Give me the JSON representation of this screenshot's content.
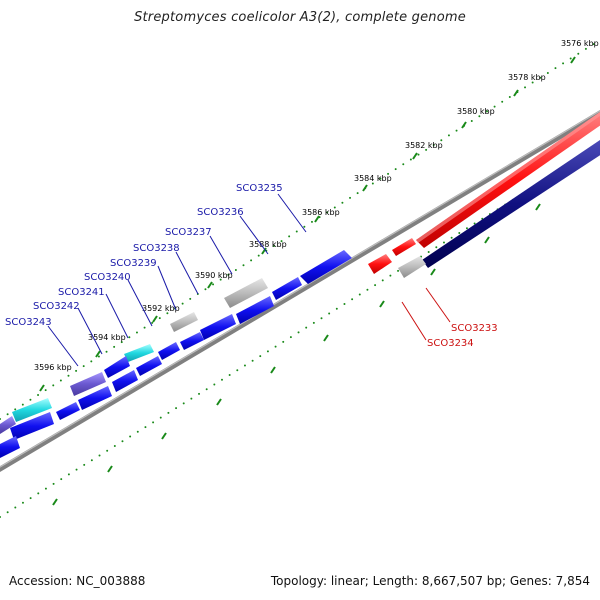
{
  "title": "Streptomyces coelicolor A3(2), complete genome",
  "footer": {
    "accession": "Accession: NC_003888",
    "stats": "Topology: linear; Length: 8,667,507 bp; Genes: 7,854"
  },
  "kbp_labels": [
    "3576 kbp",
    "3578 kbp",
    "3580 kbp",
    "3582 kbp",
    "3584 kbp",
    "3586 kbp",
    "3588 kbp",
    "3590 kbp",
    "3592 kbp",
    "3594 kbp",
    "3596 kbp"
  ],
  "gene_labels": {
    "blue": [
      "SCO3235",
      "SCO3236",
      "SCO3237",
      "SCO3238",
      "SCO3239",
      "SCO3240",
      "SCO3241",
      "SCO3242",
      "SCO3243"
    ],
    "red": [
      "SCO3233",
      "SCO3234"
    ]
  },
  "colors": {
    "forward_strand": "#ff0000",
    "reverse_strand": "#000080",
    "gene_blue": "#0a0af0",
    "gene_grey": "#b8b8b8",
    "gene_cyan": "#20d0d8",
    "gene_purple": "#7060c8",
    "backbone": "#808080",
    "tick": "#1a8a1a"
  }
}
